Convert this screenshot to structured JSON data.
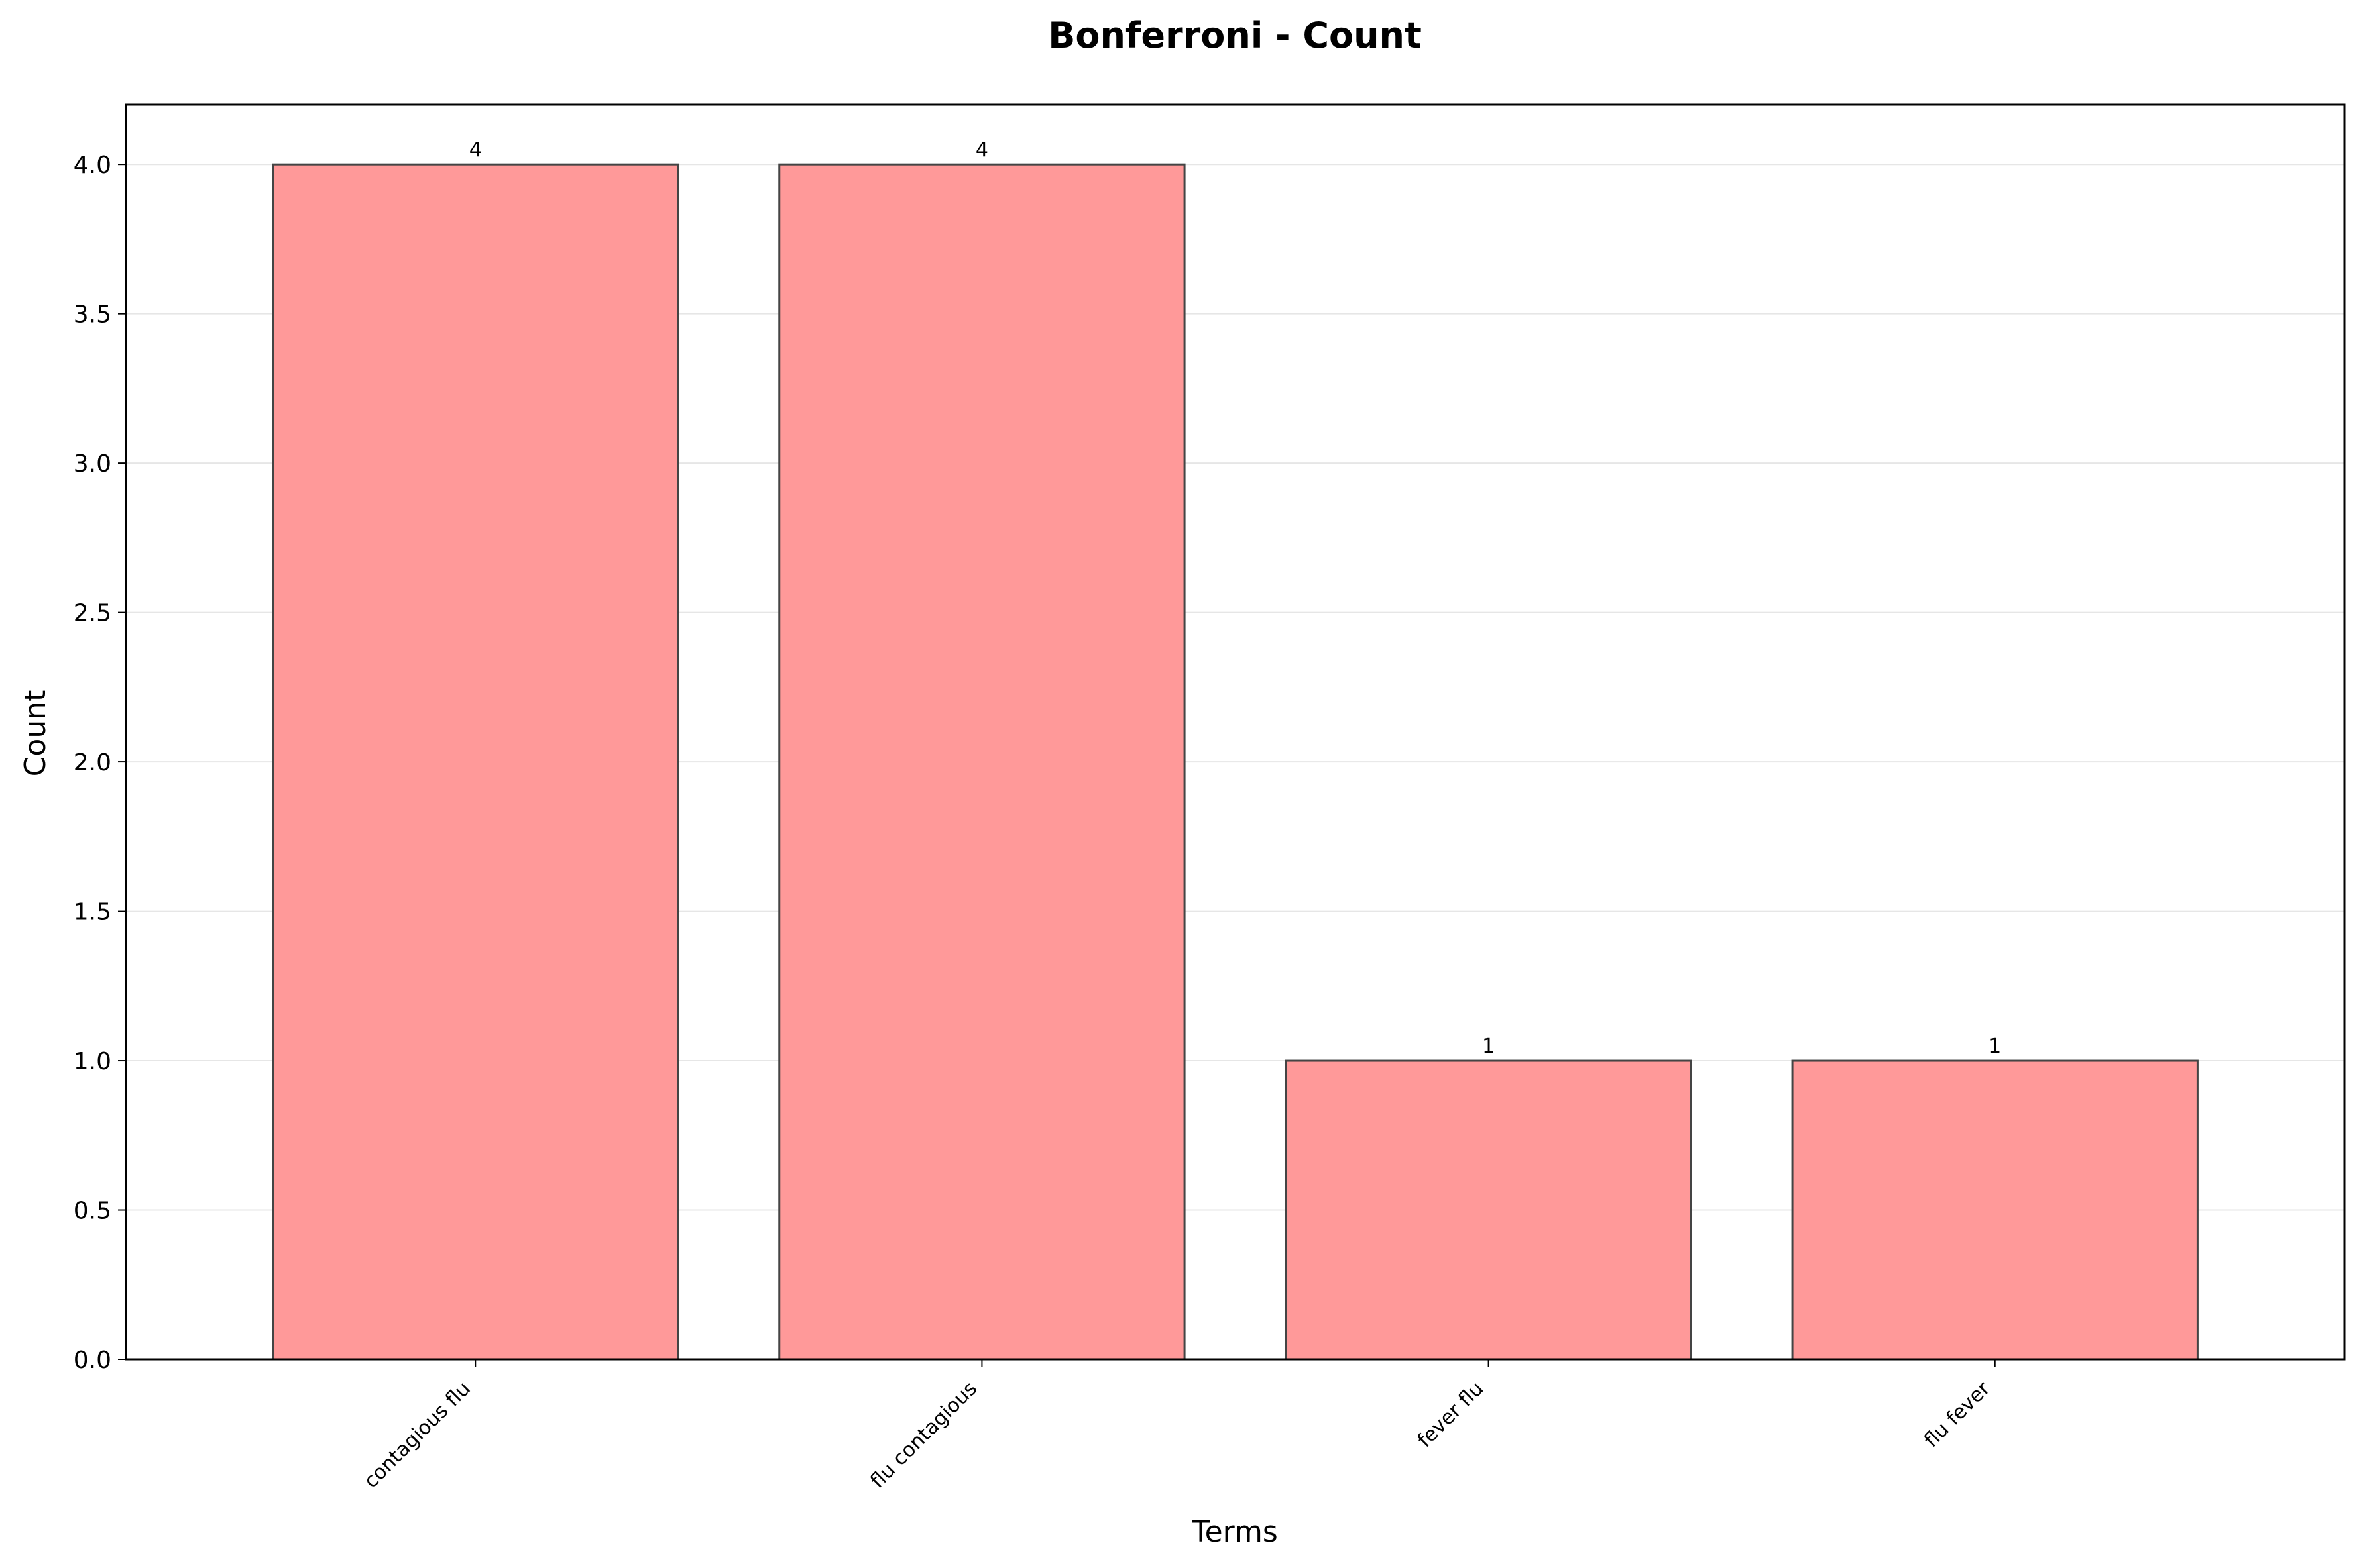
{
  "chart_data": {
    "type": "bar",
    "title": "Bonferroni - Count",
    "xlabel": "Terms",
    "ylabel": "Count",
    "categories": [
      "contagious flu",
      "flu contagious",
      "fever flu",
      "flu fever"
    ],
    "values": [
      4,
      4,
      1,
      1
    ],
    "data_labels": [
      "4",
      "4",
      "1",
      "1"
    ],
    "ylim": [
      0,
      4.2
    ],
    "yticks": [
      0.0,
      0.5,
      1.0,
      1.5,
      2.0,
      2.5,
      3.0,
      3.5,
      4.0
    ],
    "ytick_labels": [
      "0.0",
      "0.5",
      "1.0",
      "1.5",
      "2.0",
      "2.5",
      "3.0",
      "3.5",
      "4.0"
    ],
    "grid": "horizontal",
    "legend": "none",
    "bar_color": "#ff9999",
    "bar_edge_color": "#444444",
    "grid_color": "#e6e6e6"
  }
}
